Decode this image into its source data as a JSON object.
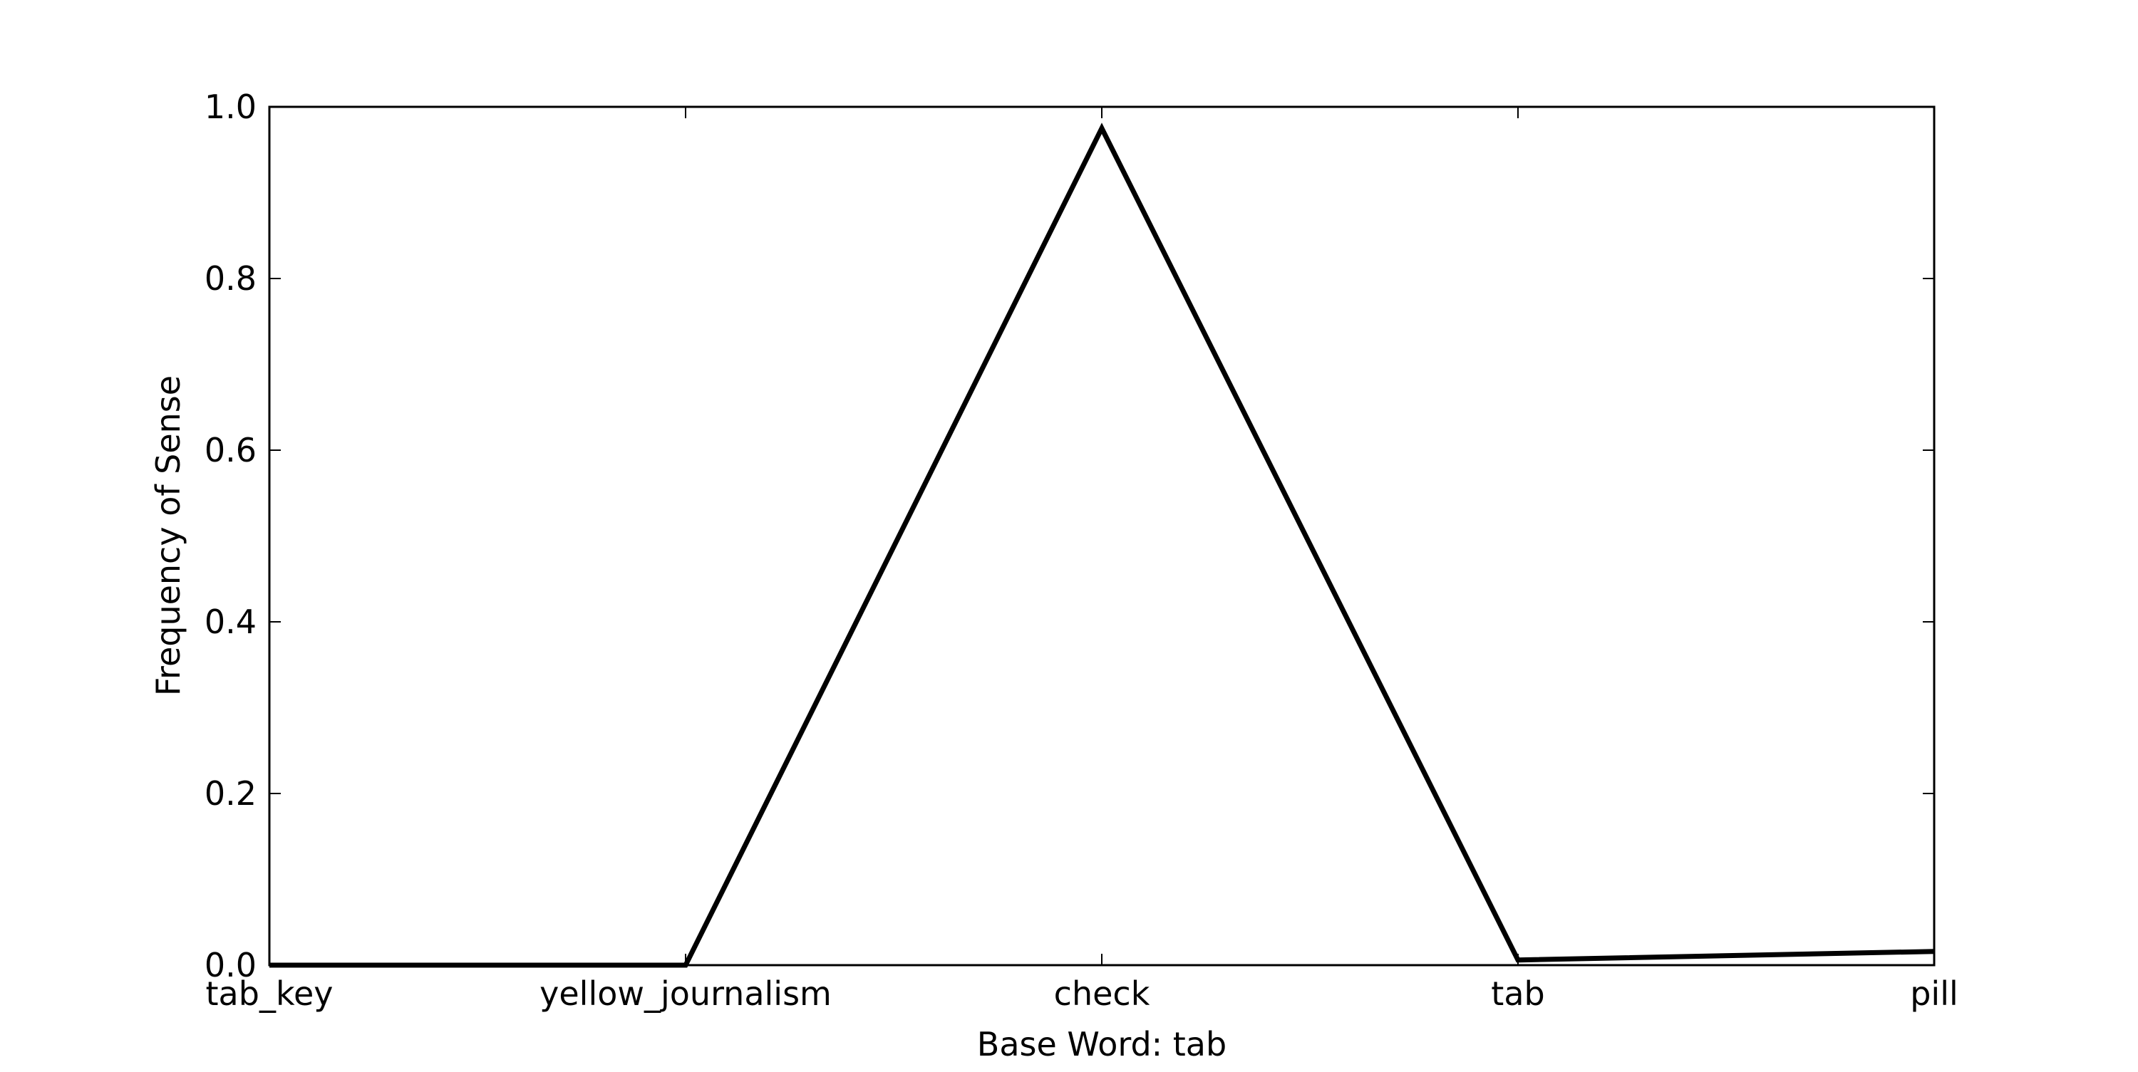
{
  "chart_data": {
    "type": "line",
    "title": "",
    "xlabel": "Base Word: tab",
    "ylabel": "Frequency of Sense",
    "categories": [
      "tab_key",
      "yellow_journalism",
      "check",
      "tab",
      "pill"
    ],
    "series": [
      {
        "values": [
          0.0,
          0.0,
          0.975,
          0.006,
          0.016
        ]
      }
    ],
    "ylim": [
      0.0,
      1.0
    ],
    "yticks": [
      "0.0",
      "0.2",
      "0.4",
      "0.6",
      "0.8",
      "1.0"
    ],
    "grid": false,
    "line_color": "#000000"
  }
}
